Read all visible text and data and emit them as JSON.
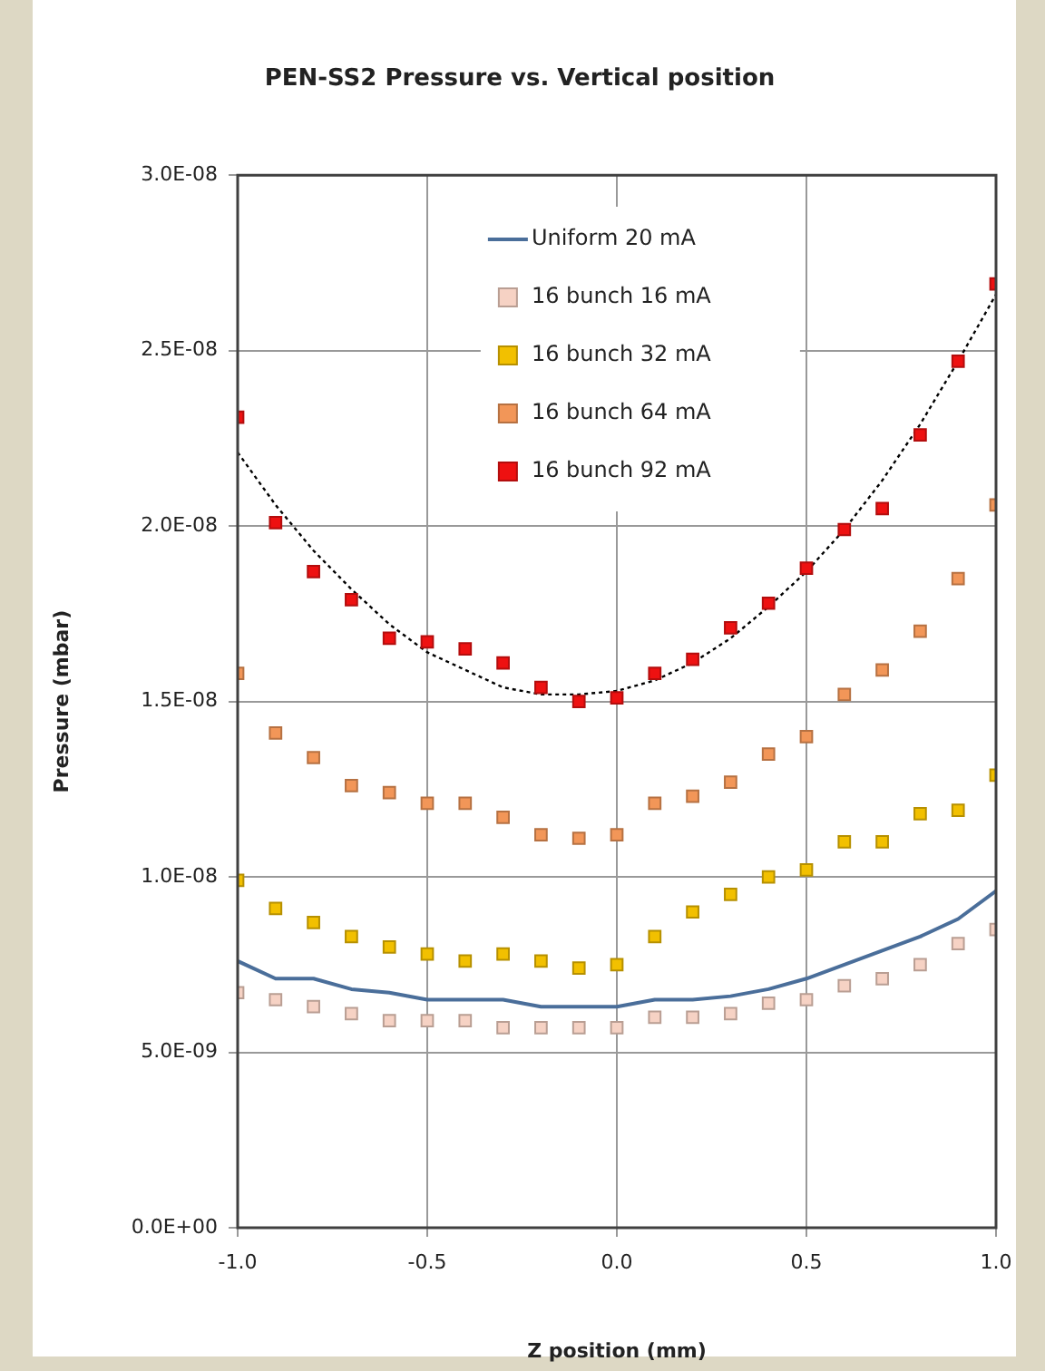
{
  "chart_data": {
    "type": "scatter",
    "title": "PEN-SS2 Pressure vs. Vertical position",
    "xlabel": "Z position (mm)",
    "ylabel": "Pressure (mbar)",
    "x": [
      -1.0,
      -0.9,
      -0.8,
      -0.7,
      -0.6,
      -0.5,
      -0.4,
      -0.3,
      -0.2,
      -0.1,
      0.0,
      0.1,
      0.2,
      0.3,
      0.4,
      0.5,
      0.6,
      0.7,
      0.8,
      0.9,
      1.0
    ],
    "series": [
      {
        "name": "Uniform 20 mA",
        "type": "line",
        "marker": "none",
        "color": "#4a6e9a",
        "values": [
          7.6e-09,
          7.1e-09,
          7.1e-09,
          6.8e-09,
          6.7e-09,
          6.5e-09,
          6.5e-09,
          6.5e-09,
          6.3e-09,
          6.3e-09,
          6.3e-09,
          6.5e-09,
          6.5e-09,
          6.6e-09,
          6.8e-09,
          7.1e-09,
          7.5e-09,
          7.9e-09,
          8.3e-09,
          8.8e-09,
          9.6e-09
        ]
      },
      {
        "name": "16 bunch 16 mA",
        "color": "#f6d2c4",
        "values": [
          6.7e-09,
          6.5e-09,
          6.3e-09,
          6.1e-09,
          5.9e-09,
          5.9e-09,
          5.9e-09,
          5.7e-09,
          5.7e-09,
          5.7e-09,
          5.7e-09,
          6e-09,
          6e-09,
          6.1e-09,
          6.4e-09,
          6.5e-09,
          6.9e-09,
          7.1e-09,
          7.5e-09,
          8.1e-09,
          8.5e-09
        ]
      },
      {
        "name": "16 bunch 32 mA",
        "color": "#f2c000",
        "values": [
          9.9e-09,
          9.1e-09,
          8.7e-09,
          8.3e-09,
          8e-09,
          7.8e-09,
          7.6e-09,
          7.8e-09,
          7.6e-09,
          7.4e-09,
          7.5e-09,
          8.3e-09,
          9e-09,
          9.5e-09,
          1e-08,
          1.02e-08,
          1.1e-08,
          1.1e-08,
          1.18e-08,
          1.19e-08,
          1.29e-08
        ]
      },
      {
        "name": "16 bunch 64 mA",
        "color": "#f29658",
        "values": [
          1.58e-08,
          1.41e-08,
          1.34e-08,
          1.26e-08,
          1.24e-08,
          1.21e-08,
          1.21e-08,
          1.17e-08,
          1.12e-08,
          1.11e-08,
          1.12e-08,
          1.21e-08,
          1.23e-08,
          1.27e-08,
          1.35e-08,
          1.4e-08,
          1.52e-08,
          1.59e-08,
          1.7e-08,
          1.85e-08,
          2.06e-08
        ]
      },
      {
        "name": "16 bunch 92 mA",
        "color": "#ee1111",
        "values": [
          2.31e-08,
          2.01e-08,
          1.87e-08,
          1.79e-08,
          1.68e-08,
          1.67e-08,
          1.65e-08,
          1.61e-08,
          1.54e-08,
          1.5e-08,
          1.51e-08,
          1.58e-08,
          1.62e-08,
          1.71e-08,
          1.78e-08,
          1.88e-08,
          1.99e-08,
          2.05e-08,
          2.26e-08,
          2.47e-08,
          2.69e-08
        ]
      },
      {
        "type": "line",
        "marker": "none",
        "line_style": "dotted",
        "color": "#000000",
        "values": [
          2.21e-08,
          2.06e-08,
          1.93e-08,
          1.82e-08,
          1.72e-08,
          1.64e-08,
          1.59e-08,
          1.54e-08,
          1.52e-08,
          1.52e-08,
          1.53e-08,
          1.56e-08,
          1.61e-08,
          1.68e-08,
          1.77e-08,
          1.87e-08,
          1.99e-08,
          2.13e-08,
          2.29e-08,
          2.47e-08,
          2.66e-08
        ]
      }
    ],
    "xlim": [
      -1.0,
      1.0
    ],
    "xticks": [
      {
        "value": -1,
        "label": "-1.0"
      },
      {
        "value": -0.5,
        "label": "-0.5"
      },
      {
        "value": 0,
        "label": "0.0"
      },
      {
        "value": 0.5,
        "label": "0.5"
      },
      {
        "value": 1,
        "label": "1.0"
      }
    ],
    "ylim": [
      0,
      3e-08
    ],
    "yticks": [
      {
        "value": 0,
        "label": "0.0E+00"
      },
      {
        "value": 5e-09,
        "label": "5.0E-09"
      },
      {
        "value": 1e-08,
        "label": "1.0E-08"
      },
      {
        "value": 1.5e-08,
        "label": "1.5E-08"
      },
      {
        "value": 2e-08,
        "label": "2.0E-08"
      },
      {
        "value": 2.5e-08,
        "label": "2.5E-08"
      },
      {
        "value": 3e-08,
        "label": "3.0E-08"
      }
    ],
    "grid": true,
    "legend": "top left",
    "marker": "square"
  }
}
